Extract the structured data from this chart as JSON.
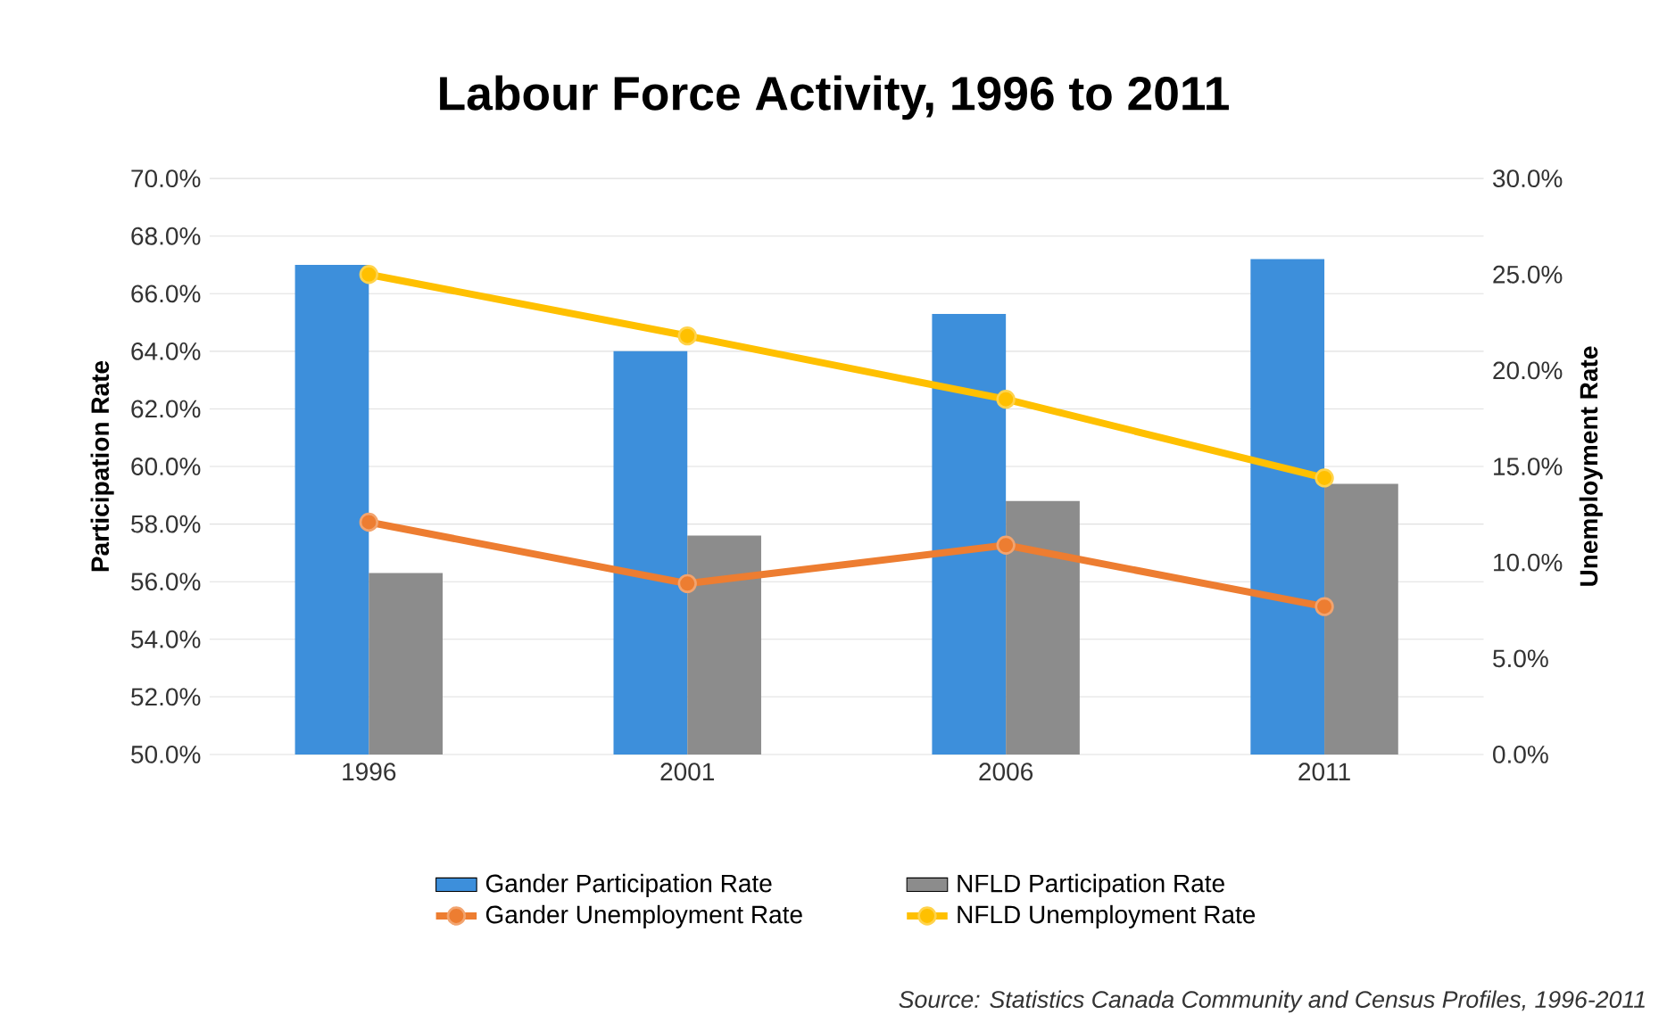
{
  "chart_data": {
    "type": "bar",
    "title": "Labour Force Activity, 1996 to 2011",
    "ylabel": "Participation Rate",
    "y2label": "Unemployment Rate",
    "categories": [
      "1996",
      "2001",
      "2006",
      "2011"
    ],
    "series": [
      {
        "name": "Gander Participation Rate",
        "color": "#3d8fdb",
        "values": [
          67.0,
          64.0,
          65.3,
          67.2
        ]
      },
      {
        "name": "NFLD Participation Rate",
        "color": "#8c8c8c",
        "values": [
          56.3,
          57.6,
          58.8,
          59.4
        ]
      },
      {
        "name": "Gander Unemployment Rate",
        "type": "line",
        "axis": "y2",
        "color": "#ed7d31",
        "values": [
          12.1,
          8.9,
          10.9,
          7.7
        ]
      },
      {
        "name": "NFLD Unemployment Rate",
        "type": "line",
        "axis": "y2",
        "color": "#ffc000",
        "values": [
          25.0,
          21.8,
          18.5,
          14.4
        ]
      }
    ],
    "ylim": [
      50,
      70
    ],
    "yticks": [
      {
        "value": 50,
        "label": "50.0%"
      },
      {
        "value": 52,
        "label": "52.0%"
      },
      {
        "value": 54,
        "label": "54.0%"
      },
      {
        "value": 56,
        "label": "56.0%"
      },
      {
        "value": 58,
        "label": "58.0%"
      },
      {
        "value": 60,
        "label": "60.0%"
      },
      {
        "value": 62,
        "label": "62.0%"
      },
      {
        "value": 64,
        "label": "64.0%"
      },
      {
        "value": 66,
        "label": "66.0%"
      },
      {
        "value": 68,
        "label": "68.0%"
      },
      {
        "value": 70,
        "label": "70.0%"
      }
    ],
    "y2lim": [
      0,
      30
    ],
    "y2ticks": [
      {
        "value": 0,
        "label": "0.0%"
      },
      {
        "value": 5,
        "label": "5.0%"
      },
      {
        "value": 10,
        "label": "10.0%"
      },
      {
        "value": 15,
        "label": "15.0%"
      },
      {
        "value": 20,
        "label": "20.0%"
      },
      {
        "value": 25,
        "label": "25.0%"
      },
      {
        "value": 30,
        "label": "30.0%"
      }
    ],
    "grid": "y",
    "legend": "bottom",
    "marker": "circle",
    "line_style": "solid",
    "annotations": [
      "Source: Statistics Canada Community and Census Profiles, 1996-2011"
    ]
  }
}
